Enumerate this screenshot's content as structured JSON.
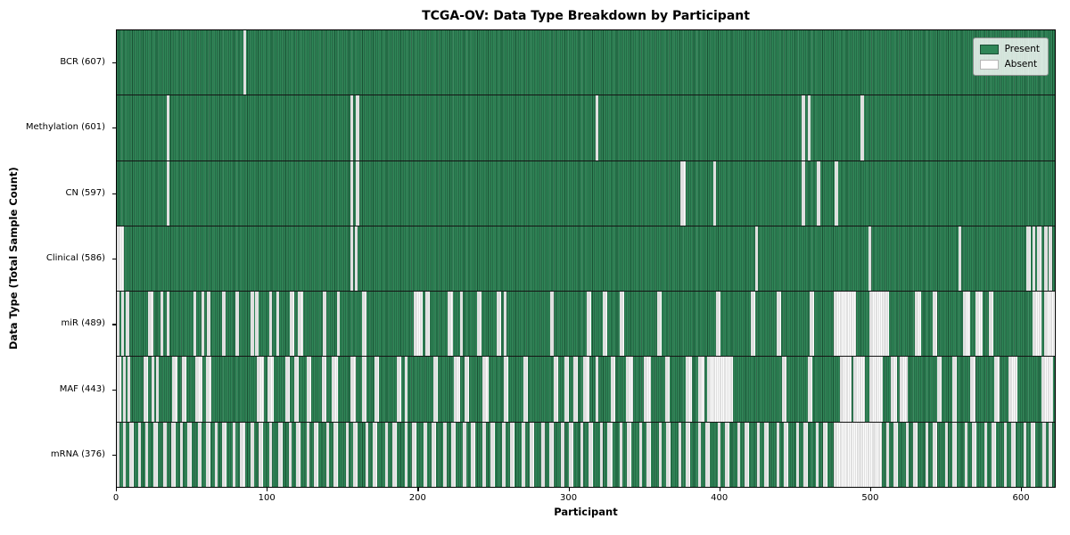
{
  "chart_data": {
    "type": "heatmap",
    "title": "TCGA-OV: Data Type Breakdown by Participant",
    "xlabel": "Participant",
    "ylabel": "Data Type (Total Sample Count)",
    "x_ticks": [
      0,
      100,
      200,
      300,
      400,
      500,
      600
    ],
    "x_max": 623,
    "grid": false,
    "legend_position": "upper right",
    "colors": {
      "present": "#2f8657",
      "absent": "#fdfdfd",
      "bar_edge": "#1b4d34",
      "separator": "#141414"
    },
    "legend_items": [
      {
        "label": "Present",
        "value": "present",
        "color": "#2f8657"
      },
      {
        "label": "Absent",
        "value": "absent",
        "color": "#ffffff"
      }
    ],
    "rows": [
      {
        "label": "BCR (607)",
        "data_type": "BCR",
        "present_count": 607,
        "absent_ranges": [
          [
            84,
            85
          ]
        ]
      },
      {
        "label": "Methylation (601)",
        "data_type": "Methylation",
        "present_count": 601,
        "absent_ranges": [
          [
            33,
            34
          ],
          [
            155,
            156
          ],
          [
            159,
            160
          ],
          [
            318,
            319
          ],
          [
            455,
            456
          ],
          [
            459,
            460
          ],
          [
            494,
            495
          ]
        ]
      },
      {
        "label": "CN (597)",
        "data_type": "CN",
        "present_count": 597,
        "absent_ranges": [
          [
            33,
            34
          ],
          [
            155,
            156
          ],
          [
            159,
            160
          ],
          [
            374,
            377
          ],
          [
            396,
            397
          ],
          [
            455,
            456
          ],
          [
            465,
            466
          ],
          [
            477,
            478
          ]
        ]
      },
      {
        "label": "Clinical (586)",
        "data_type": "Clinical",
        "present_count": 586,
        "absent_ranges": [
          [
            0,
            4
          ],
          [
            155,
            156
          ],
          [
            158,
            159
          ],
          [
            424,
            425
          ],
          [
            499,
            500
          ],
          [
            559,
            560
          ],
          [
            604,
            606
          ],
          [
            608,
            609
          ],
          [
            611,
            613
          ],
          [
            616,
            617
          ],
          [
            619,
            620
          ]
        ]
      },
      {
        "label": "miR (489)",
        "data_type": "miR",
        "present_count": 489,
        "absent_ranges": [
          [
            0,
            1
          ],
          [
            3,
            4
          ],
          [
            6,
            7
          ],
          [
            21,
            23
          ],
          [
            29,
            30
          ],
          [
            33,
            34
          ],
          [
            51,
            52
          ],
          [
            56,
            57
          ],
          [
            60,
            61
          ],
          [
            70,
            71
          ],
          [
            79,
            80
          ],
          [
            89,
            90
          ],
          [
            92,
            93
          ],
          [
            101,
            102
          ],
          [
            106,
            107
          ],
          [
            115,
            117
          ],
          [
            120,
            123
          ],
          [
            137,
            138
          ],
          [
            146,
            147
          ],
          [
            163,
            165
          ],
          [
            197,
            202
          ],
          [
            205,
            207
          ],
          [
            220,
            222
          ],
          [
            228,
            229
          ],
          [
            239,
            241
          ],
          [
            252,
            254
          ],
          [
            257,
            258
          ],
          [
            288,
            289
          ],
          [
            312,
            314
          ],
          [
            323,
            325
          ],
          [
            334,
            336
          ],
          [
            359,
            361
          ],
          [
            398,
            400
          ],
          [
            421,
            423
          ],
          [
            438,
            440
          ],
          [
            460,
            462
          ],
          [
            476,
            490
          ],
          [
            500,
            512
          ],
          [
            530,
            533
          ],
          [
            542,
            544
          ],
          [
            562,
            566
          ],
          [
            570,
            574
          ],
          [
            579,
            581
          ],
          [
            608,
            613
          ],
          [
            616,
            622
          ]
        ]
      },
      {
        "label": "MAF (443)",
        "data_type": "MAF",
        "present_count": 443,
        "absent_ranges": [
          [
            0,
            2
          ],
          [
            4,
            5
          ],
          [
            7,
            8
          ],
          [
            18,
            20
          ],
          [
            23,
            24
          ],
          [
            26,
            27
          ],
          [
            37,
            39
          ],
          [
            43,
            45
          ],
          [
            52,
            56
          ],
          [
            59,
            62
          ],
          [
            93,
            97
          ],
          [
            100,
            103
          ],
          [
            112,
            114
          ],
          [
            118,
            120
          ],
          [
            126,
            128
          ],
          [
            136,
            138
          ],
          [
            143,
            146
          ],
          [
            155,
            158
          ],
          [
            163,
            165
          ],
          [
            171,
            173
          ],
          [
            186,
            188
          ],
          [
            191,
            192
          ],
          [
            210,
            212
          ],
          [
            224,
            227
          ],
          [
            231,
            233
          ],
          [
            243,
            246
          ],
          [
            257,
            259
          ],
          [
            270,
            272
          ],
          [
            290,
            292
          ],
          [
            297,
            299
          ],
          [
            303,
            305
          ],
          [
            310,
            313
          ],
          [
            318,
            319
          ],
          [
            328,
            330
          ],
          [
            338,
            342
          ],
          [
            350,
            354
          ],
          [
            364,
            366
          ],
          [
            378,
            381
          ],
          [
            386,
            389
          ],
          [
            392,
            408
          ],
          [
            442,
            444
          ],
          [
            459,
            461
          ],
          [
            480,
            487
          ],
          [
            489,
            496
          ],
          [
            500,
            508
          ],
          [
            514,
            517
          ],
          [
            520,
            524
          ],
          [
            545,
            547
          ],
          [
            555,
            557
          ],
          [
            567,
            569
          ],
          [
            583,
            585
          ],
          [
            592,
            597
          ],
          [
            614,
            621
          ]
        ]
      },
      {
        "label": "mRNA (376)",
        "data_type": "mRNA",
        "present_count": 376,
        "absent_ranges": [
          [
            0,
            1
          ],
          [
            4,
            5
          ],
          [
            8,
            10
          ],
          [
            14,
            15
          ],
          [
            19,
            20
          ],
          [
            24,
            26
          ],
          [
            31,
            32
          ],
          [
            36,
            38
          ],
          [
            42,
            43
          ],
          [
            47,
            49
          ],
          [
            54,
            55
          ],
          [
            59,
            61
          ],
          [
            65,
            66
          ],
          [
            70,
            72
          ],
          [
            77,
            78
          ],
          [
            82,
            84
          ],
          [
            89,
            90
          ],
          [
            94,
            96
          ],
          [
            101,
            102
          ],
          [
            107,
            109
          ],
          [
            114,
            115
          ],
          [
            119,
            121
          ],
          [
            126,
            127
          ],
          [
            131,
            133
          ],
          [
            139,
            140
          ],
          [
            144,
            146
          ],
          [
            152,
            153
          ],
          [
            157,
            159
          ],
          [
            165,
            166
          ],
          [
            170,
            172
          ],
          [
            178,
            179
          ],
          [
            183,
            185
          ],
          [
            191,
            192
          ],
          [
            196,
            198
          ],
          [
            204,
            205
          ],
          [
            209,
            211
          ],
          [
            217,
            218
          ],
          [
            222,
            224
          ],
          [
            230,
            231
          ],
          [
            235,
            237
          ],
          [
            243,
            244
          ],
          [
            248,
            250
          ],
          [
            256,
            257
          ],
          [
            261,
            263
          ],
          [
            269,
            270
          ],
          [
            274,
            276
          ],
          [
            282,
            283
          ],
          [
            287,
            289
          ],
          [
            295,
            296
          ],
          [
            300,
            302
          ],
          [
            308,
            309
          ],
          [
            313,
            315
          ],
          [
            321,
            322
          ],
          [
            326,
            328
          ],
          [
            334,
            335
          ],
          [
            339,
            341
          ],
          [
            347,
            348
          ],
          [
            352,
            354
          ],
          [
            360,
            361
          ],
          [
            365,
            367
          ],
          [
            373,
            374
          ],
          [
            378,
            380
          ],
          [
            386,
            387
          ],
          [
            391,
            393
          ],
          [
            399,
            400
          ],
          [
            404,
            406
          ],
          [
            412,
            413
          ],
          [
            417,
            419
          ],
          [
            425,
            426
          ],
          [
            430,
            432
          ],
          [
            438,
            439
          ],
          [
            443,
            445
          ],
          [
            451,
            452
          ],
          [
            456,
            458
          ],
          [
            464,
            465
          ],
          [
            469,
            471
          ],
          [
            476,
            507
          ],
          [
            511,
            512
          ],
          [
            516,
            518
          ],
          [
            524,
            525
          ],
          [
            529,
            531
          ],
          [
            537,
            538
          ],
          [
            542,
            544
          ],
          [
            550,
            551
          ],
          [
            555,
            557
          ],
          [
            563,
            564
          ],
          [
            568,
            570
          ],
          [
            576,
            577
          ],
          [
            581,
            583
          ],
          [
            589,
            590
          ],
          [
            594,
            596
          ],
          [
            602,
            603
          ],
          [
            607,
            609
          ],
          [
            615,
            616
          ],
          [
            619,
            620
          ]
        ]
      }
    ]
  }
}
